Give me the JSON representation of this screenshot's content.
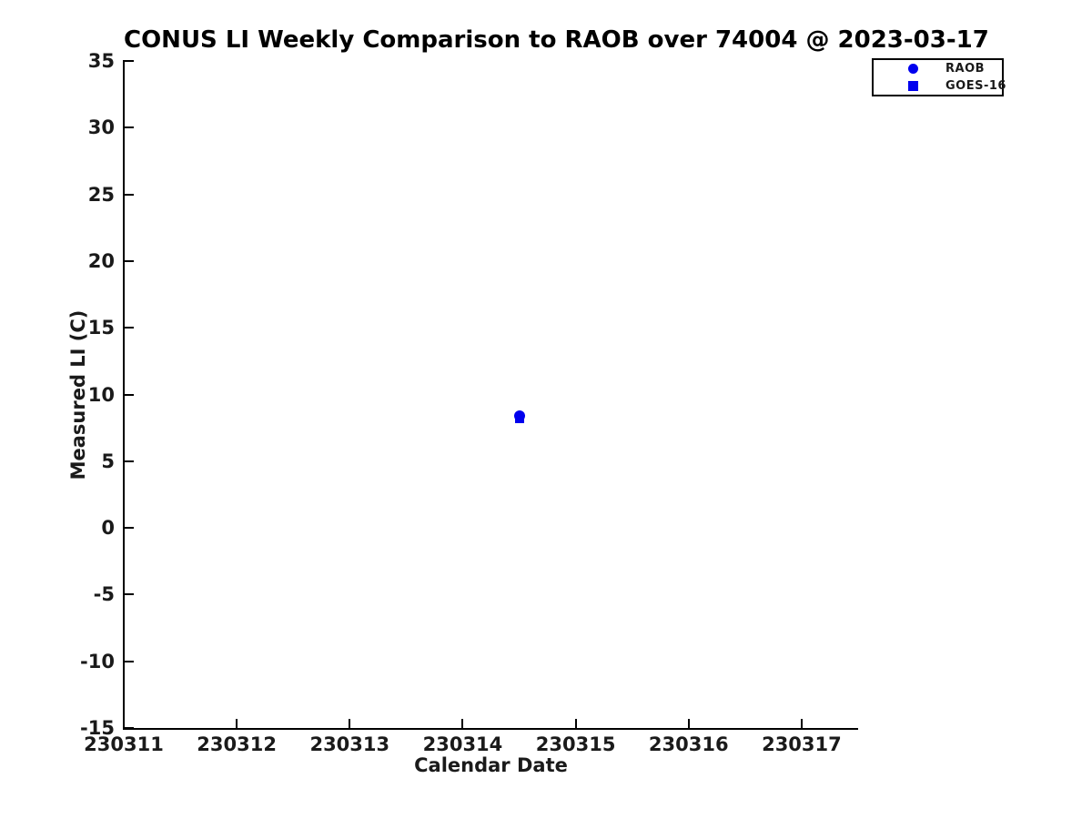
{
  "figure": {
    "background": "#ffffff",
    "text_color": "#1a1a1a",
    "axis_color": "#000000",
    "accent_blue": "#0000EE"
  },
  "chart_data": {
    "type": "scatter",
    "title": "CONUS LI Weekly Comparison to RAOB over 74004 @ 2023-03-17",
    "xlabel": "Calendar Date",
    "ylabel": "Measured LI (C)",
    "xlim": [
      230311,
      230317.5
    ],
    "ylim": [
      -15,
      35
    ],
    "x_ticks": [
      230311,
      230312,
      230313,
      230314,
      230315,
      230316,
      230317
    ],
    "y_ticks": [
      35,
      30,
      25,
      20,
      15,
      10,
      5,
      0,
      -5,
      -10,
      -15
    ],
    "grid": false,
    "legend": {
      "position": "top-right-outside",
      "entries": [
        {
          "label": "RAOB",
          "marker": "circle",
          "color": "#0000EE"
        },
        {
          "label": "GOES-16",
          "marker": "square",
          "color": "#0000EE"
        }
      ]
    },
    "series": [
      {
        "name": "RAOB",
        "marker": "circle",
        "color": "#0000EE",
        "marker_size": 12,
        "points": [
          {
            "x": 230314.5,
            "y": 8.4
          }
        ]
      },
      {
        "name": "GOES-16",
        "marker": "square",
        "color": "#0000EE",
        "marker_size": 10,
        "points": [
          {
            "x": 230314.5,
            "y": 8.2
          }
        ]
      }
    ]
  }
}
